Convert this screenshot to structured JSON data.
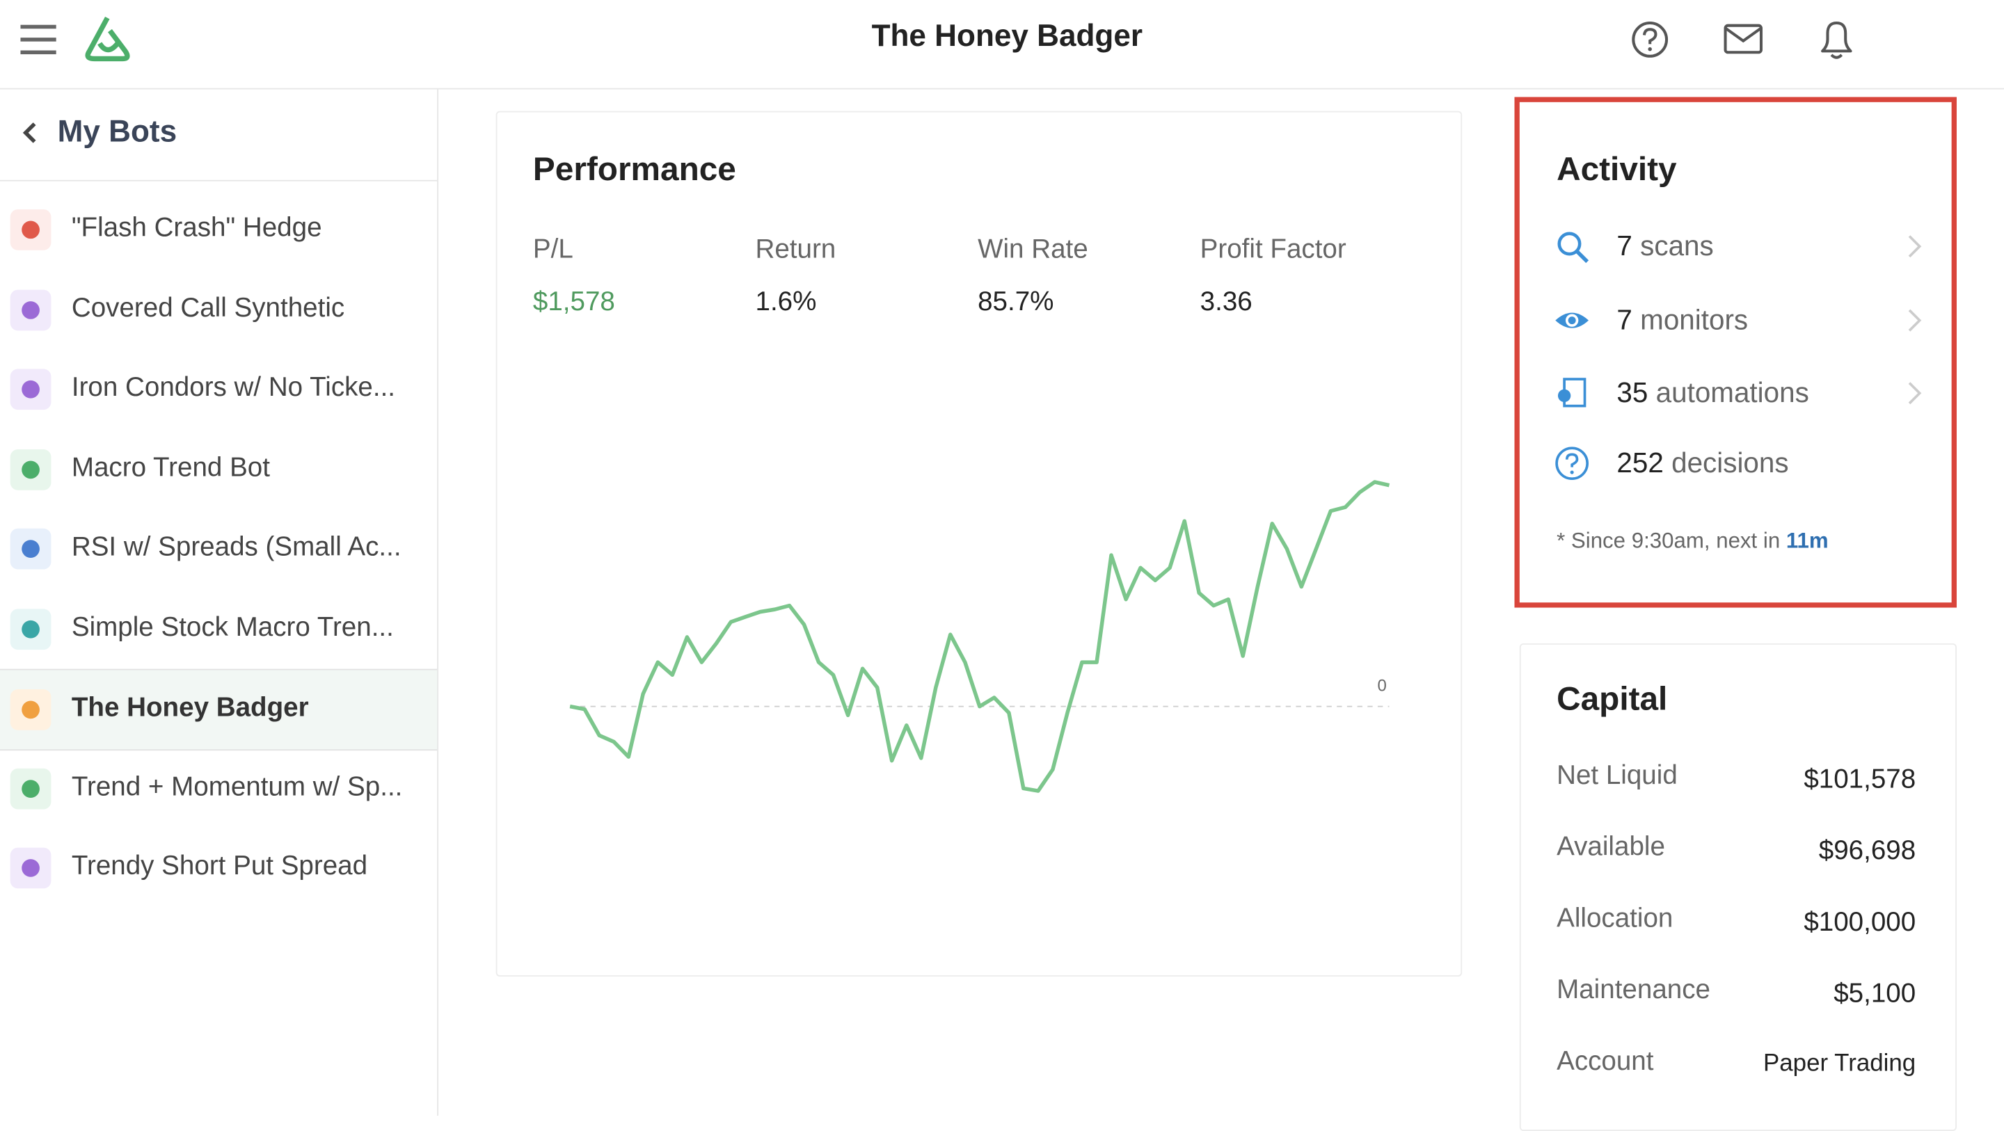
{
  "header": {
    "title": "The Honey Badger"
  },
  "sidebar": {
    "back": "My Bots",
    "active": 6,
    "bots": [
      "\"Flash Crash\" Hedge",
      "Covered Call Synthetic",
      "Iron Condors w/ No Ticke...",
      "Macro Trend Bot",
      "RSI w/ Spreads (Small Ac...",
      "Simple Stock Macro Tren...",
      "The Honey Badger",
      "Trend + Momentum w/ Sp...",
      "Trendy Short Put Spread"
    ]
  },
  "performance": {
    "title": "Performance",
    "metrics": [
      {
        "label": "P/L",
        "value": "$1,578"
      },
      {
        "label": "Return",
        "value": "1.6%"
      },
      {
        "label": "Win Rate",
        "value": "85.7%"
      },
      {
        "label": "Profit Factor",
        "value": "3.36"
      }
    ],
    "chart": {
      "type": "line",
      "color": "#7cc68c",
      "ylim": [
        -1700,
        2400
      ],
      "yticks": [
        0
      ],
      "values": [
        0,
        -20,
        -207,
        -252,
        -360,
        90,
        315,
        225,
        495,
        315,
        450,
        603,
        640,
        675,
        693,
        720,
        585,
        315,
        225,
        -63,
        270,
        135,
        -387,
        -135,
        -369,
        135,
        513,
        315,
        0,
        63,
        -45,
        -585,
        -603,
        -450,
        -45,
        315,
        315,
        1080,
        765,
        990,
        900,
        990,
        1323,
        810,
        720,
        765,
        360,
        855,
        1305,
        1125,
        855,
        1125,
        1395,
        1422,
        1530,
        1602,
        1578
      ]
    }
  },
  "activity": {
    "title": "Activity",
    "items": [
      {
        "count": 7,
        "label": "scans"
      },
      {
        "count": 7,
        "label": "monitors"
      },
      {
        "count": 35,
        "label": "automations"
      },
      {
        "count": 252,
        "label": "decisions"
      }
    ],
    "note": "* Since 9:30am, next in",
    "next": "11m"
  },
  "capital": {
    "title": "Capital",
    "rows": [
      {
        "label": "Net Liquid",
        "value": "$101,578"
      },
      {
        "label": "Available",
        "value": "$96,698"
      },
      {
        "label": "Allocation",
        "value": "$100,000"
      },
      {
        "label": "Maintenance",
        "value": "$5,100"
      },
      {
        "label": "Account",
        "value": "Paper Trading"
      }
    ]
  }
}
